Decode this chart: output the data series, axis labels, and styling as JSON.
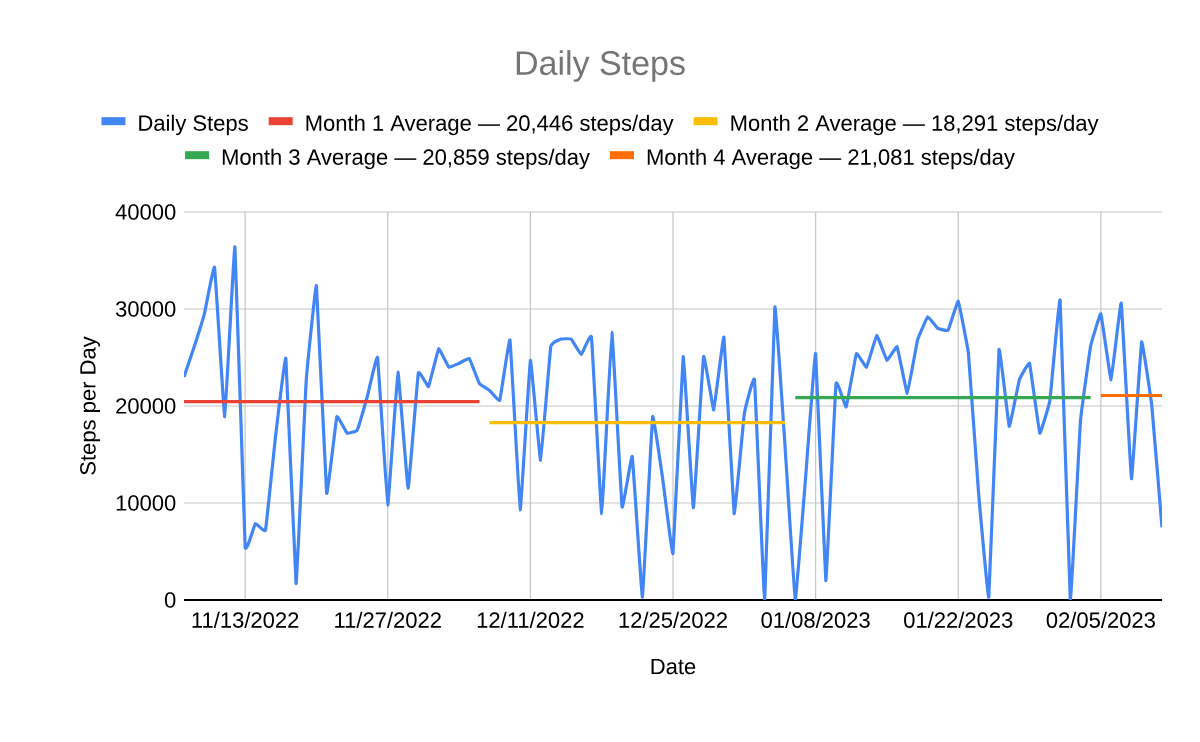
{
  "chart_data": {
    "type": "line",
    "title": "Daily Steps",
    "xlabel": "Date",
    "ylabel": "Steps per Day",
    "x": [
      "2022-11-07",
      "2022-11-08",
      "2022-11-09",
      "2022-11-10",
      "2022-11-11",
      "2022-11-12",
      "2022-11-13",
      "2022-11-14",
      "2022-11-15",
      "2022-11-16",
      "2022-11-17",
      "2022-11-18",
      "2022-11-19",
      "2022-11-20",
      "2022-11-21",
      "2022-11-22",
      "2022-11-23",
      "2022-11-24",
      "2022-11-25",
      "2022-11-26",
      "2022-11-27",
      "2022-11-28",
      "2022-11-29",
      "2022-11-30",
      "2022-12-01",
      "2022-12-02",
      "2022-12-03",
      "2022-12-04",
      "2022-12-05",
      "2022-12-06",
      "2022-12-07",
      "2022-12-08",
      "2022-12-09",
      "2022-12-10",
      "2022-12-11",
      "2022-12-12",
      "2022-12-13",
      "2022-12-14",
      "2022-12-15",
      "2022-12-16",
      "2022-12-17",
      "2022-12-18",
      "2022-12-19",
      "2022-12-20",
      "2022-12-21",
      "2022-12-22",
      "2022-12-23",
      "2022-12-24",
      "2022-12-25",
      "2022-12-26",
      "2022-12-27",
      "2022-12-28",
      "2022-12-29",
      "2022-12-30",
      "2022-12-31",
      "2023-01-01",
      "2023-01-02",
      "2023-01-03",
      "2023-01-04",
      "2023-01-05",
      "2023-01-06",
      "2023-01-07",
      "2023-01-08",
      "2023-01-09",
      "2023-01-10",
      "2023-01-11",
      "2023-01-12",
      "2023-01-13",
      "2023-01-14",
      "2023-01-15",
      "2023-01-16",
      "2023-01-17",
      "2023-01-18",
      "2023-01-19",
      "2023-01-20",
      "2023-01-21",
      "2023-01-22",
      "2023-01-23",
      "2023-01-24",
      "2023-01-25",
      "2023-01-26",
      "2023-01-27",
      "2023-01-28",
      "2023-01-29",
      "2023-01-30",
      "2023-01-31",
      "2023-02-01",
      "2023-02-02",
      "2023-02-03",
      "2023-02-04",
      "2023-02-05",
      "2023-02-06",
      "2023-02-07",
      "2023-02-08",
      "2023-02-09",
      "2023-02-10",
      "2023-02-11"
    ],
    "series": [
      {
        "name": "Daily Steps",
        "color": "#4285f4",
        "values": [
          23000,
          26100,
          29500,
          34300,
          18900,
          36400,
          5500,
          7900,
          7200,
          17000,
          24900,
          1700,
          22700,
          32400,
          11000,
          18900,
          17200,
          17500,
          21000,
          25000,
          9800,
          23500,
          11500,
          23400,
          22000,
          25900,
          24000,
          24400,
          24900,
          22300,
          21600,
          20600,
          26800,
          9300,
          24700,
          14400,
          26100,
          26900,
          26900,
          25300,
          27100,
          8900,
          27600,
          9600,
          14800,
          300,
          18900,
          12400,
          4800,
          25100,
          9500,
          25100,
          19600,
          27100,
          8900,
          19200,
          22700,
          0,
          30200,
          15800,
          0,
          12400,
          25400,
          2000,
          22300,
          19900,
          25400,
          24000,
          27300,
          24700,
          26100,
          21300,
          26800,
          29200,
          28000,
          27800,
          30800,
          25400,
          11000,
          300,
          25800,
          17900,
          22700,
          24400,
          17200,
          20600,
          30900,
          0,
          18500,
          26200,
          29500,
          22700,
          30600,
          12500,
          26600,
          20000,
          7500
        ]
      },
      {
        "name": "Month 1 Average — 20,446 steps/day",
        "color": "#ea4335",
        "x": [
          "2022-11-07",
          "2022-12-06"
        ],
        "values": [
          20446,
          20446
        ]
      },
      {
        "name": "Month 2 Average — 18,291 steps/day",
        "color": "#fbbc04",
        "x": [
          "2022-12-07",
          "2023-01-05"
        ],
        "values": [
          18291,
          18291
        ]
      },
      {
        "name": "Month 3 Average — 20,859 steps/day",
        "color": "#34a853",
        "x": [
          "2023-01-06",
          "2023-02-04"
        ],
        "values": [
          20859,
          20859
        ]
      },
      {
        "name": "Month 4 Average — 21,081 steps/day",
        "color": "#ff6d01",
        "x": [
          "2023-02-05",
          "2023-02-11"
        ],
        "values": [
          21081,
          21081
        ]
      }
    ],
    "xlim": [
      "2022-11-07",
      "2023-02-11"
    ],
    "xticks": [
      {
        "value": "2022-11-13",
        "label": "11/13/2022"
      },
      {
        "value": "2022-11-27",
        "label": "11/27/2022"
      },
      {
        "value": "2022-12-11",
        "label": "12/11/2022"
      },
      {
        "value": "2022-12-25",
        "label": "12/25/2022"
      },
      {
        "value": "2023-01-08",
        "label": "01/08/2023"
      },
      {
        "value": "2023-01-22",
        "label": "01/22/2023"
      },
      {
        "value": "2023-02-05",
        "label": "02/05/2023"
      }
    ],
    "ylim": [
      0,
      40000
    ],
    "yticks": [
      0,
      10000,
      20000,
      30000,
      40000
    ],
    "grid": true,
    "legend": "top"
  }
}
